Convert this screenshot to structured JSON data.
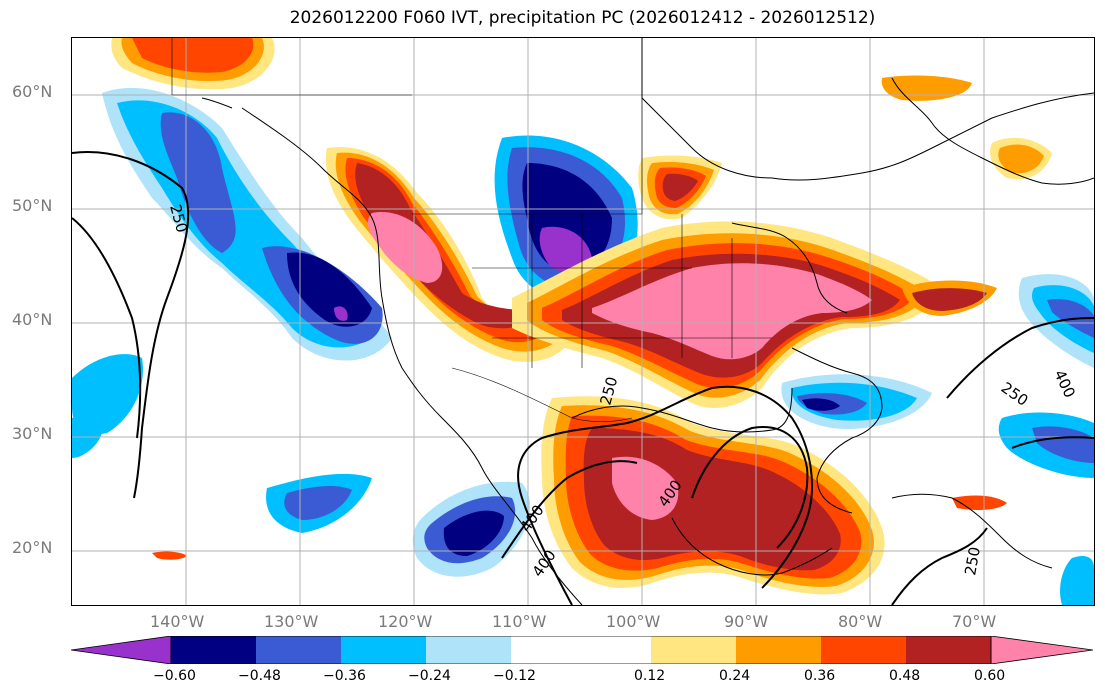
{
  "title": "2026012200 F060 IVT, precipitation PC (2026012412 - 2026012512)",
  "map": {
    "lat_labels": [
      "60°N",
      "50°N",
      "40°N",
      "30°N",
      "20°N"
    ],
    "lon_labels": [
      "140°W",
      "130°W",
      "120°W",
      "110°W",
      "100°W",
      "90°W",
      "80°W",
      "70°W"
    ],
    "contour_labels": [
      "250",
      "250",
      "250",
      "250",
      "400",
      "400",
      "400",
      "400"
    ],
    "colors": {
      "neg_extreme": "#9932cc",
      "neg_060": "#000080",
      "neg_048": "#3a5bd4",
      "neg_036": "#00bfff",
      "neg_024": "#aee3fa",
      "neutral": "#ffffff",
      "pos_012": "#ffe680",
      "pos_024": "#ff9c00",
      "pos_036": "#ff4500",
      "pos_048": "#b22222",
      "pos_060": "#ff82ab"
    }
  },
  "colorbar": {
    "ticks": [
      "−0.60",
      "−0.48",
      "−0.36",
      "−0.24",
      "−0.12",
      "0.12",
      "0.24",
      "0.36",
      "0.48",
      "0.60"
    ],
    "colors": [
      "#9932cc",
      "#000080",
      "#3a5bd4",
      "#00bfff",
      "#aee3fa",
      "#ffffff",
      "#ffe680",
      "#ff9c00",
      "#ff4500",
      "#b22222",
      "#ff82ab"
    ]
  }
}
